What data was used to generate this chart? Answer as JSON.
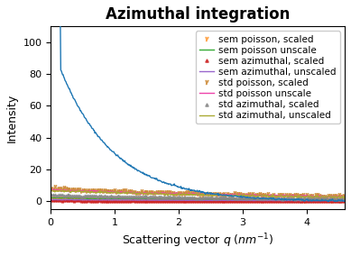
{
  "title": "Azimuthal integration",
  "xlabel": "Scattering vector $q$ $(nm^{-1})$",
  "ylabel": "Intensity",
  "xlim": [
    0,
    4.6
  ],
  "ylim": [
    -5,
    110
  ],
  "q_max": 4.6,
  "n_points": 500,
  "peak_q": 0.08,
  "peak_intensity": 100,
  "decay_rate": 1.2,
  "series": [
    {
      "label": "sem poisson, scaled",
      "color": "#ff9933",
      "lw": 0,
      "marker": "y",
      "ms": 4,
      "type": "scatter_low"
    },
    {
      "label": "sem poisson unscale",
      "color": "#33aa33",
      "lw": 1.2,
      "marker": null,
      "ms": 0,
      "type": "line_low"
    },
    {
      "label": "sem azimuthal, scaled",
      "color": "#cc2222",
      "lw": 0,
      "marker": "^",
      "ms": 3,
      "type": "scatter_low2"
    },
    {
      "label": "sem azimuthal, unscaled",
      "color": "#9966cc",
      "lw": 1.2,
      "marker": null,
      "ms": 0,
      "type": "line_low2"
    },
    {
      "label": "std poisson, scaled",
      "color": "#cc8833",
      "lw": 0,
      "marker": "y",
      "ms": 4,
      "type": "scatter_mid"
    },
    {
      "label": "std poisson unscale",
      "color": "#ee44aa",
      "lw": 1.2,
      "marker": null,
      "ms": 0,
      "type": "line_mid"
    },
    {
      "label": "std azimuthal, scaled",
      "color": "#888888",
      "lw": 0,
      "marker": "^",
      "ms": 3,
      "type": "scatter_mid2"
    },
    {
      "label": "std azimuthal, unscaled",
      "color": "#aaaa33",
      "lw": 1.2,
      "marker": null,
      "ms": 0,
      "type": "line_high"
    }
  ],
  "main_curve_color": "#1f77b4",
  "legend_fontsize": 7.5,
  "title_fontsize": 12
}
